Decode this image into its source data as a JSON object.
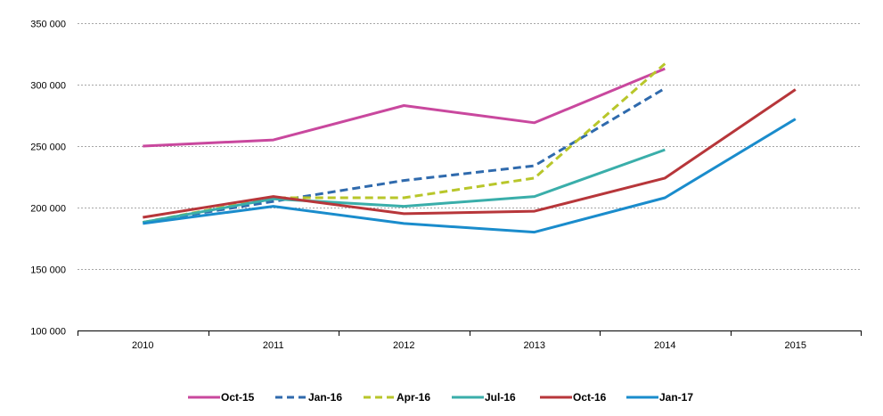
{
  "chart_data": {
    "type": "line",
    "title": "",
    "xlabel": "",
    "ylabel": "",
    "categories": [
      "2010",
      "2011",
      "2012",
      "2013",
      "2014",
      "2015"
    ],
    "ylim": [
      100000,
      350000
    ],
    "yticks": [
      100000,
      150000,
      200000,
      250000,
      300000,
      350000
    ],
    "ytick_labels": [
      "100 000",
      "150 000",
      "200 000",
      "250 000",
      "300 000",
      "350 000"
    ],
    "grid": "horizontal dotted",
    "legend_position": "bottom",
    "series": [
      {
        "name": "Oct-15",
        "color": "#c9489e",
        "dashed": false,
        "values": [
          250000,
          255000,
          283000,
          269000,
          313000,
          null
        ]
      },
      {
        "name": "Jan-16",
        "color": "#2f6aad",
        "dashed": true,
        "values": [
          188000,
          205000,
          222000,
          234000,
          297000,
          null
        ]
      },
      {
        "name": "Apr-16",
        "color": "#b8c62a",
        "dashed": true,
        "values": [
          188000,
          208000,
          208000,
          224000,
          317000,
          null
        ]
      },
      {
        "name": "Jul-16",
        "color": "#3aaeaa",
        "dashed": false,
        "values": [
          188000,
          207000,
          201000,
          209000,
          247000,
          null
        ]
      },
      {
        "name": "Oct-16",
        "color": "#b7363a",
        "dashed": false,
        "values": [
          192000,
          209000,
          195000,
          197000,
          224000,
          296000
        ]
      },
      {
        "name": "Jan-17",
        "color": "#1a8ccc",
        "dashed": false,
        "values": [
          187000,
          201000,
          187000,
          180000,
          208000,
          272000
        ]
      }
    ]
  }
}
